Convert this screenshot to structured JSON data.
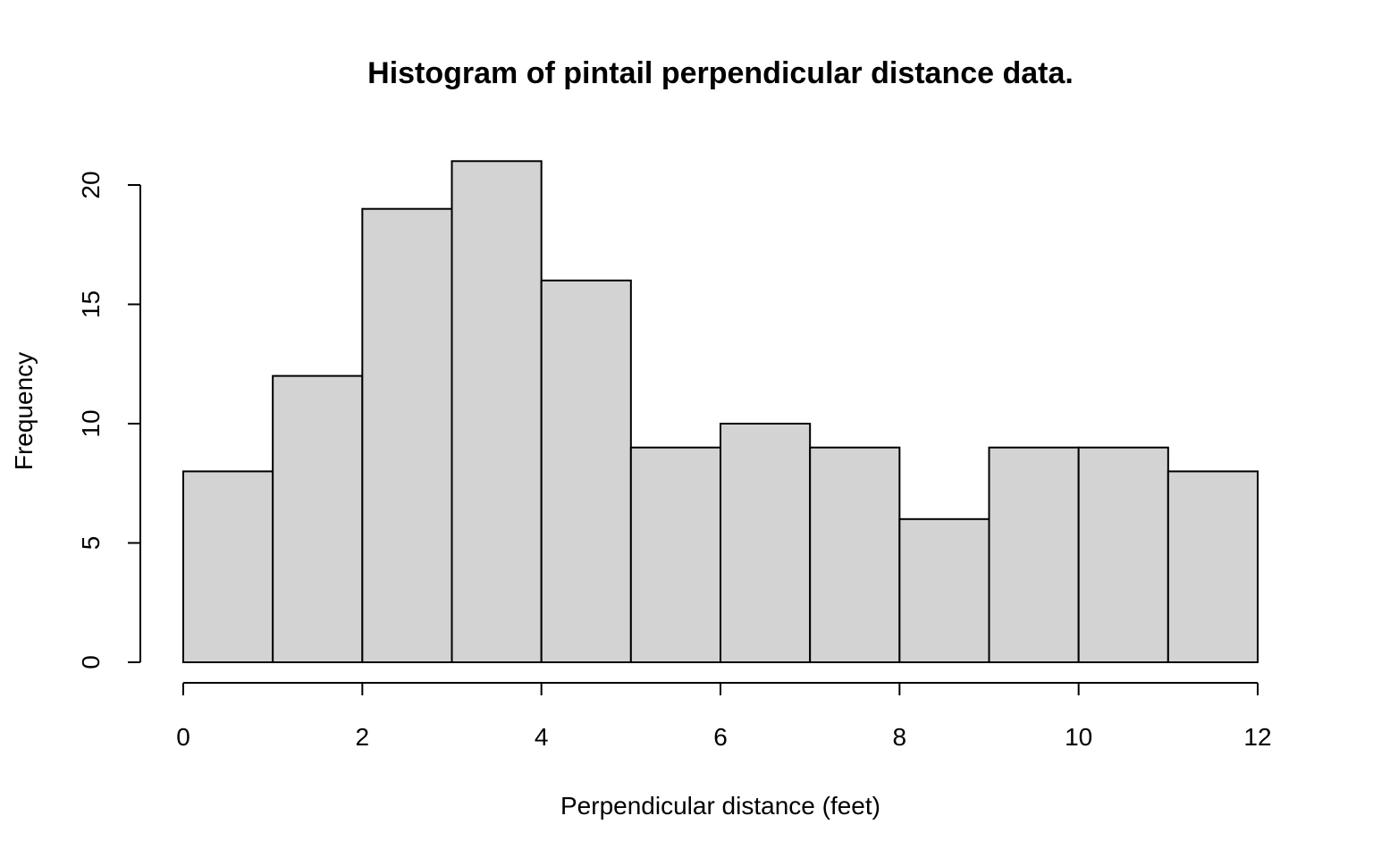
{
  "chart_data": {
    "type": "bar",
    "title": "Histogram of pintail perpendicular distance data.",
    "xlabel": "Perpendicular distance (feet)",
    "ylabel": "Frequency",
    "bins": [
      {
        "start": 0,
        "end": 1,
        "count": 8
      },
      {
        "start": 1,
        "end": 2,
        "count": 12
      },
      {
        "start": 2,
        "end": 3,
        "count": 19
      },
      {
        "start": 3,
        "end": 4,
        "count": 21
      },
      {
        "start": 4,
        "end": 5,
        "count": 16
      },
      {
        "start": 5,
        "end": 6,
        "count": 9
      },
      {
        "start": 6,
        "end": 7,
        "count": 10
      },
      {
        "start": 7,
        "end": 8,
        "count": 9
      },
      {
        "start": 8,
        "end": 9,
        "count": 6
      },
      {
        "start": 9,
        "end": 10,
        "count": 9
      },
      {
        "start": 10,
        "end": 11,
        "count": 9
      },
      {
        "start": 11,
        "end": 12,
        "count": 8
      }
    ],
    "xlim": [
      0,
      12
    ],
    "ylim": [
      0,
      21
    ],
    "xticks": [
      0,
      2,
      4,
      6,
      8,
      10,
      12
    ],
    "yticks": [
      0,
      5,
      10,
      15,
      20
    ],
    "grid": false,
    "legend": "none",
    "colors": {
      "bar_fill": "#d3d3d3",
      "bar_stroke": "#000000",
      "axis": "#000000"
    }
  }
}
